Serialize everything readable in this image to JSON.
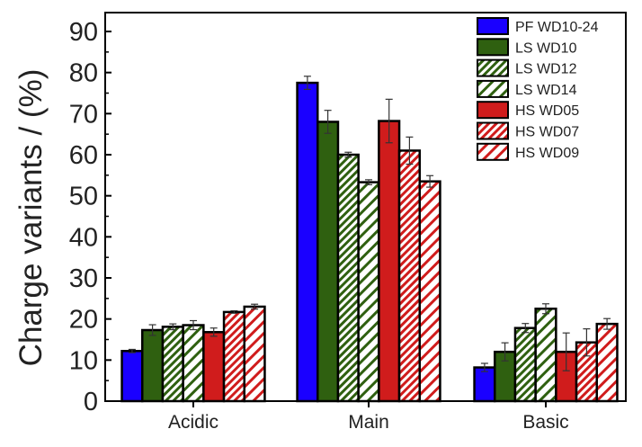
{
  "chart_data": {
    "type": "bar",
    "title": "",
    "xlabel": "",
    "ylabel": "Charge variants / (%)",
    "ylim": [
      0,
      94.6
    ],
    "yticks": [
      0,
      10,
      20,
      30,
      40,
      50,
      60,
      70,
      80,
      90
    ],
    "categories": [
      "Acidic",
      "Main",
      "Basic"
    ],
    "legend_position": "top-right",
    "series": [
      {
        "name": "PF WD10-24",
        "color": "#1a00ff",
        "hatch": false,
        "values": [
          12.2,
          77.5,
          8.2
        ],
        "errors": [
          0.4,
          1.6,
          1.0
        ]
      },
      {
        "name": "LS WD10",
        "color": "#2f6010",
        "hatch": false,
        "values": [
          17.3,
          68.0,
          12.0
        ],
        "errors": [
          1.3,
          2.8,
          2.2
        ]
      },
      {
        "name": "LS WD12",
        "color": "#2f6010",
        "hatch": "dense",
        "values": [
          18.1,
          60.0,
          17.8
        ],
        "errors": [
          0.7,
          0.6,
          1.1
        ]
      },
      {
        "name": "LS WD14",
        "color": "#2f6010",
        "hatch": "sparse",
        "values": [
          18.5,
          53.3,
          22.5
        ],
        "errors": [
          1.1,
          0.6,
          1.2
        ]
      },
      {
        "name": "HS WD05",
        "color": "#d01c1c",
        "hatch": false,
        "values": [
          16.8,
          68.2,
          12.0
        ],
        "errors": [
          1.0,
          5.3,
          4.6
        ]
      },
      {
        "name": "HS WD07",
        "color": "#d01c1c",
        "hatch": "dense",
        "values": [
          21.7,
          61.0,
          14.3
        ],
        "errors": [
          0.3,
          3.3,
          3.3
        ]
      },
      {
        "name": "HS WD09",
        "color": "#d01c1c",
        "hatch": "sparse",
        "values": [
          23.0,
          53.5,
          18.8
        ],
        "errors": [
          0.6,
          1.4,
          1.3
        ]
      }
    ]
  }
}
